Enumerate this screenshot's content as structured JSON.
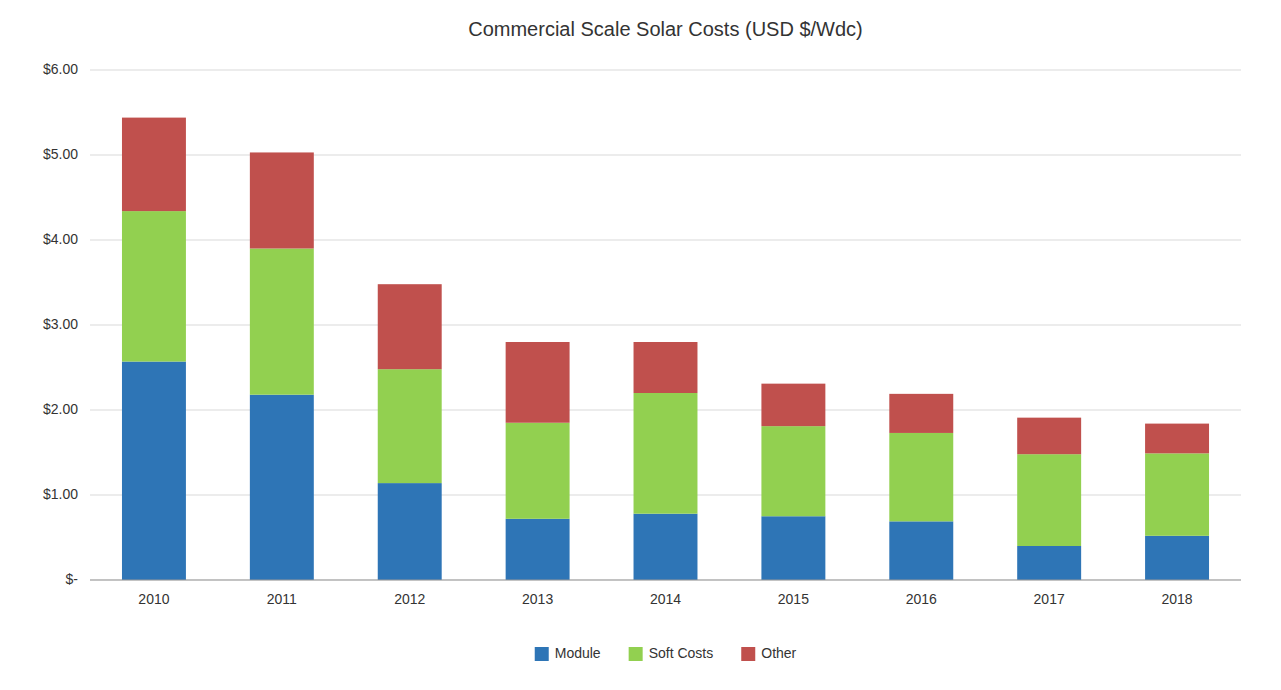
{
  "chart_data": {
    "type": "bar",
    "title": "Commercial Scale Solar Costs (USD $/Wdc)",
    "categories": [
      "2010",
      "2011",
      "2012",
      "2013",
      "2014",
      "2015",
      "2016",
      "2017",
      "2018"
    ],
    "series": [
      {
        "name": "Module",
        "color": "#2E75B6",
        "values": [
          2.57,
          2.18,
          1.14,
          0.72,
          0.78,
          0.75,
          0.69,
          0.4,
          0.52
        ]
      },
      {
        "name": "Soft Costs",
        "color": "#92D050",
        "values": [
          1.77,
          1.72,
          1.34,
          1.13,
          1.42,
          1.06,
          1.04,
          1.08,
          0.97
        ]
      },
      {
        "name": "Other",
        "color": "#C0504D",
        "values": [
          1.1,
          1.13,
          1.0,
          0.95,
          0.6,
          0.5,
          0.46,
          0.43,
          0.35
        ]
      }
    ],
    "stacked": true,
    "ylim": [
      0,
      6.0
    ],
    "yticks": [
      {
        "value": 0,
        "label": "$-"
      },
      {
        "value": 1.0,
        "label": "$1.00"
      },
      {
        "value": 2.0,
        "label": "$2.00"
      },
      {
        "value": 3.0,
        "label": "$3.00"
      },
      {
        "value": 4.0,
        "label": "$4.00"
      },
      {
        "value": 5.0,
        "label": "$5.00"
      },
      {
        "value": 6.0,
        "label": "$6.00"
      }
    ],
    "grid": true,
    "legend": "bottom"
  }
}
